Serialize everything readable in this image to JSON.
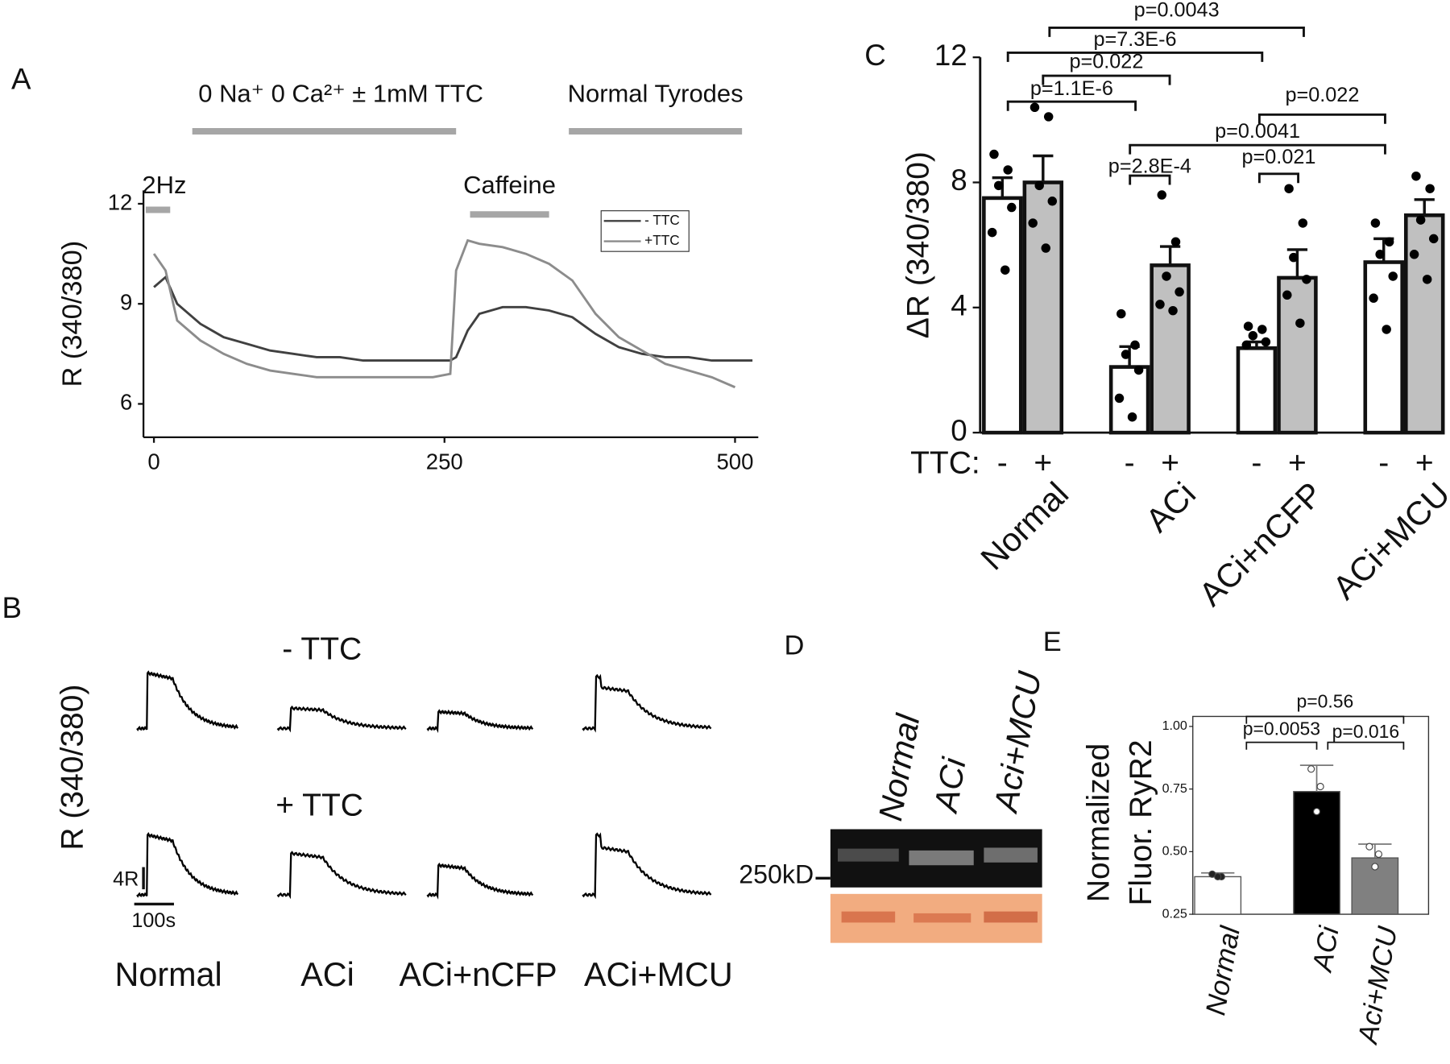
{
  "chart_data": [
    {
      "type": "line",
      "panel": "A",
      "ylabel": "R (340/380)",
      "x": [
        0,
        10,
        20,
        40,
        60,
        80,
        100,
        120,
        140,
        160,
        180,
        200,
        220,
        240,
        255,
        260,
        270,
        280,
        300,
        320,
        340,
        360,
        380,
        400,
        420,
        440,
        460,
        480,
        500,
        515
      ],
      "series": [
        {
          "name": "- TTC",
          "color": "#404040",
          "values": [
            9.5,
            9.8,
            9.0,
            8.4,
            8.0,
            7.8,
            7.6,
            7.5,
            7.4,
            7.4,
            7.3,
            7.3,
            7.3,
            7.3,
            7.3,
            7.4,
            8.2,
            8.7,
            8.9,
            8.9,
            8.8,
            8.6,
            8.1,
            7.7,
            7.5,
            7.4,
            7.4,
            7.3,
            7.3,
            7.3
          ]
        },
        {
          "name": "+TTC",
          "color": "#8c8c8c",
          "values": [
            10.5,
            10.0,
            8.5,
            7.9,
            7.5,
            7.2,
            7.0,
            6.9,
            6.8,
            6.8,
            6.8,
            6.8,
            6.8,
            6.8,
            6.9,
            10.0,
            10.9,
            10.8,
            10.7,
            10.5,
            10.2,
            9.7,
            8.7,
            8.0,
            7.6,
            7.2,
            7.0,
            6.8,
            6.5,
            null
          ]
        }
      ],
      "xlim": [
        -9,
        520
      ],
      "ylim": [
        5,
        12.4
      ],
      "xticks": [
        0,
        250,
        500
      ],
      "yticks": [
        6,
        9,
        12
      ],
      "legend": "upper right",
      "annotation_color": "#a6a6a6",
      "annotations": [
        {
          "text": "0 Na⁺ 0 Ca²⁺ ± 1mM TTC",
          "start": 33,
          "end": 260
        },
        {
          "text": "Normal Tyrodes",
          "start": 357,
          "end": 506
        },
        {
          "text": "2Hz",
          "start": -7,
          "end": 14
        },
        {
          "text": "Caffeine",
          "start": 272,
          "end": 340
        }
      ]
    },
    {
      "type": "traces",
      "panel": "B",
      "ylabel": "R (340/380)",
      "rows": [
        "- TTC",
        "+ TTC"
      ],
      "categories": [
        "Normal",
        "ACi",
        "ACi+nCFP",
        "ACi+MCU"
      ],
      "scale_y_label": "4R",
      "scale_x_label": "100s"
    },
    {
      "type": "grouped-bar",
      "panel": "C",
      "ylabel": "ΔR (340/380)",
      "group_label": "TTC:",
      "categories": [
        "Normal",
        "ACi",
        "ACi+nCFP",
        "ACi+MCU"
      ],
      "series": [
        {
          "name": "-",
          "color": "#ffffff",
          "values": [
            7.5,
            2.1,
            2.7,
            5.45
          ],
          "errors": [
            0.65,
            0.65,
            0.2,
            0.75
          ],
          "points": [
            [
              8.9,
              8.4,
              7.9,
              7.2,
              6.4,
              5.2
            ],
            [
              3.8,
              2.8,
              2.5,
              2.0,
              1.1,
              0.5
            ],
            [
              3.4,
              3.3,
              3.1,
              2.9,
              2.8
            ],
            [
              6.7,
              6.1,
              5.7,
              5.0,
              4.3,
              3.3
            ]
          ]
        },
        {
          "name": "+",
          "color": "#c0c0c0",
          "values": [
            8.0,
            5.35,
            4.95,
            6.95
          ],
          "errors": [
            0.85,
            0.6,
            0.9,
            0.5
          ],
          "points": [
            [
              10.4,
              10.1,
              7.9,
              7.4,
              6.7,
              5.9
            ],
            [
              7.6,
              6.1,
              5.0,
              4.5,
              4.1,
              3.9
            ],
            [
              7.8,
              6.7,
              5.6,
              4.9,
              4.4,
              3.5
            ],
            [
              8.2,
              7.8,
              6.8,
              6.2,
              5.7,
              4.9
            ]
          ]
        }
      ],
      "ylim": [
        0,
        12
      ],
      "yticks": [
        0,
        4,
        8,
        12
      ],
      "comparisons": [
        "p=0.0043",
        "p=7.3E-6",
        "p=0.022",
        "p=1.1E-6",
        "p=0.022",
        "p=0.0041",
        "p=0.021",
        "p=2.8E-4"
      ]
    },
    {
      "type": "blot",
      "panel": "D",
      "categories": [
        "Normal",
        "ACi",
        "Aci+MCU"
      ],
      "marker": "250kD"
    },
    {
      "type": "bar",
      "panel": "E",
      "ylabel": [
        "Normalized",
        "Fluor. RyR2"
      ],
      "categories": [
        "Normal",
        "ACi",
        "Aci+MCU"
      ],
      "colors": [
        "#ffffff",
        "#000000",
        "#808080"
      ],
      "values": [
        0.4,
        0.74,
        0.475
      ],
      "errors": [
        0.015,
        0.105,
        0.055
      ],
      "points": [
        [
          0.41,
          0.4,
          0.4
        ],
        [
          0.83,
          0.76,
          0.66
        ],
        [
          0.52,
          0.49,
          0.44
        ]
      ],
      "ylim": [
        0.25,
        1.04
      ],
      "yticks": [
        {
          "value": 0.25,
          "label": "0.25"
        },
        {
          "value": 0.5,
          "label": "0.50"
        },
        {
          "value": 0.75,
          "label": "0.75"
        },
        {
          "value": 1.0,
          "label": "1.00"
        }
      ],
      "comparisons": [
        "p=0.56",
        "p=0.0053",
        "p=0.016"
      ]
    }
  ]
}
